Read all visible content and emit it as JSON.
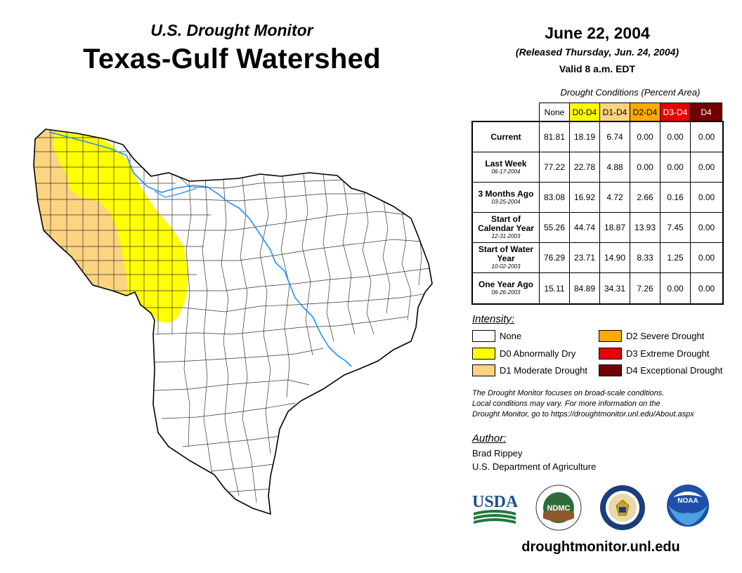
{
  "header": {
    "subtitle": "U.S. Drought Monitor",
    "title": "Texas-Gulf Watershed",
    "date": "June 22, 2004",
    "released": "(Released Thursday, Jun. 24, 2004)",
    "valid": "Valid 8 a.m. EDT"
  },
  "colors": {
    "none": "#ffffff",
    "d0": "#ffff00",
    "d1": "#fcd37f",
    "d2": "#ffaa00",
    "d3": "#e60000",
    "d4": "#730000",
    "river": "#1e90ff"
  },
  "table": {
    "caption": "Drought Conditions (Percent Area)",
    "columns": [
      "None",
      "D0-D4",
      "D1-D4",
      "D2-D4",
      "D3-D4",
      "D4"
    ],
    "rows": [
      {
        "label": "Current",
        "date": "",
        "values": [
          "81.81",
          "18.19",
          "6.74",
          "0.00",
          "0.00",
          "0.00"
        ]
      },
      {
        "label": "Last Week",
        "date": "06-17-2004",
        "values": [
          "77.22",
          "22.78",
          "4.88",
          "0.00",
          "0.00",
          "0.00"
        ]
      },
      {
        "label": "3 Months Ago",
        "date": "03-25-2004",
        "values": [
          "83.08",
          "16.92",
          "4.72",
          "2.66",
          "0.16",
          "0.00"
        ]
      },
      {
        "label": "Start of Calendar Year",
        "date": "12-31-2003",
        "values": [
          "55.26",
          "44.74",
          "18.87",
          "13.93",
          "7.45",
          "0.00"
        ]
      },
      {
        "label": "Start of Water Year",
        "date": "10-02-2003",
        "values": [
          "76.29",
          "23.71",
          "14.90",
          "8.33",
          "1.25",
          "0.00"
        ]
      },
      {
        "label": "One Year Ago",
        "date": "06-26-2003",
        "values": [
          "15.11",
          "84.89",
          "34.31",
          "7.26",
          "0.00",
          "0.00"
        ]
      }
    ]
  },
  "legend": {
    "title": "Intensity:",
    "items": {
      "none": "None",
      "d0": "D0 Abnormally Dry",
      "d1": "D1 Moderate Drought",
      "d2": "D2 Severe Drought",
      "d3": "D3 Extreme Drought",
      "d4": "D4 Exceptional Drought"
    }
  },
  "note": {
    "line1": "The Drought Monitor focuses on broad-scale conditions.",
    "line2": "Local conditions may vary. For more information on the",
    "line3": "Drought Monitor, go to https://droughtmonitor.unl.edu/About.aspx"
  },
  "author": {
    "title": "Author:",
    "name": "Brad Rippey",
    "org": "U.S. Department of Agriculture"
  },
  "logos": {
    "usda": "USDA",
    "ndmc": "NDMC",
    "noaa": "NOAA"
  },
  "footer": {
    "url": "droughtmonitor.unl.edu"
  }
}
